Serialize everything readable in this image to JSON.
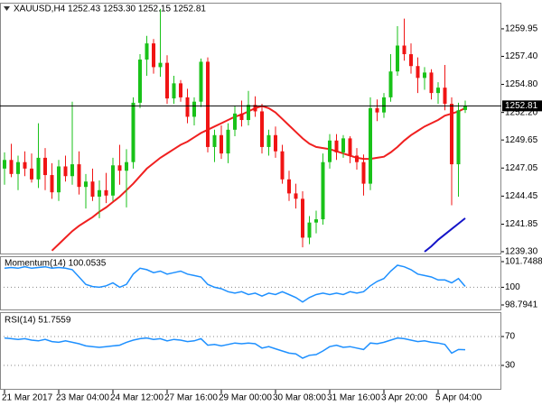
{
  "chart_data": [
    {
      "type": "candlestick",
      "title": "XAUUSD,H4  1252.43 1253.30 1252.15 1252.81",
      "categories": [
        "21 Mar 2017",
        null,
        null,
        null,
        null,
        null,
        null,
        null,
        "23 Mar 04:00",
        null,
        null,
        null,
        null,
        null,
        null,
        null,
        "24 Mar 12:00",
        null,
        null,
        null,
        null,
        null,
        null,
        null,
        "27 Mar 16:00",
        null,
        null,
        null,
        null,
        null,
        null,
        null,
        "29 Mar 00:00",
        null,
        null,
        null,
        null,
        null,
        null,
        null,
        "30 Mar 08:00",
        null,
        null,
        null,
        null,
        null,
        null,
        null,
        "31 Mar 16:00",
        null,
        null,
        null,
        null,
        null,
        null,
        null,
        "3 Apr 20:00",
        null,
        null,
        null,
        null,
        null,
        null,
        null,
        "5 Apr 04:00",
        null,
        null,
        null,
        null
      ],
      "open": [
        1247.0,
        1247.8,
        1246.5,
        1247.6,
        1247.0,
        1246.0,
        1248.0,
        1246.4,
        1244.8,
        1247.2,
        1246.3,
        1247.4,
        1245.3,
        1245.8,
        1244.4,
        1245.0,
        1244.5,
        1247.3,
        1246.8,
        1247.6,
        1253.1,
        1257.1,
        1258.6,
        1256.4,
        1256.8,
        1253.5,
        1254.9,
        1253.6,
        1251.8,
        1253.2,
        1256.9,
        1249.0,
        1250.1,
        1248.4,
        1250.6,
        1252.1,
        1251.5,
        1252.9,
        1252.3,
        1249.0,
        1250.1,
        1248.6,
        1246.0,
        1244.7,
        1244.2,
        1240.6,
        1242.0,
        1242.3,
        1247.6,
        1249.6,
        1248.5,
        1249.8,
        1248.2,
        1247.6,
        1245.6,
        1252.6,
        1252.2,
        1253.6,
        1256.0,
        1258.4,
        1257.6,
        1256.5,
        1255.4,
        1255.9,
        1254.0,
        1254.5,
        1253.0,
        1247.4,
        1252.43
      ],
      "high": [
        1248.5,
        1249.3,
        1248.2,
        1248.6,
        1248.4,
        1251.2,
        1248.9,
        1247.5,
        1247.8,
        1248.2,
        1253.2,
        1248.6,
        1246.5,
        1247.0,
        1245.9,
        1246.6,
        1248.0,
        1249.2,
        1248.8,
        1253.6,
        1257.6,
        1259.3,
        1259.0,
        1261.8,
        1257.5,
        1255.6,
        1255.2,
        1254.4,
        1253.6,
        1257.2,
        1257.3,
        1250.6,
        1251.0,
        1251.2,
        1252.8,
        1253.3,
        1254.2,
        1253.7,
        1253.0,
        1250.6,
        1250.9,
        1249.2,
        1246.8,
        1245.6,
        1244.9,
        1242.6,
        1243.1,
        1248.4,
        1250.2,
        1250.2,
        1250.1,
        1250.0,
        1248.9,
        1248.3,
        1253.6,
        1253.4,
        1254.0,
        1257.6,
        1260.2,
        1260.9,
        1258.6,
        1257.3,
        1256.4,
        1256.2,
        1255.0,
        1256.6,
        1253.6,
        1253.1,
        1253.3
      ],
      "low": [
        1245.5,
        1246.2,
        1245.0,
        1246.3,
        1245.7,
        1245.2,
        1245.0,
        1244.2,
        1244.0,
        1245.8,
        1245.5,
        1244.6,
        1243.3,
        1244.0,
        1242.4,
        1243.8,
        1244.0,
        1245.5,
        1243.4,
        1247.0,
        1252.6,
        1255.6,
        1255.8,
        1255.5,
        1253.0,
        1253.0,
        1253.2,
        1251.2,
        1251.0,
        1252.7,
        1248.5,
        1247.6,
        1247.9,
        1247.5,
        1250.0,
        1250.9,
        1251.0,
        1251.8,
        1248.4,
        1248.2,
        1248.0,
        1245.6,
        1244.0,
        1243.3,
        1239.7,
        1240.0,
        1241.0,
        1241.8,
        1247.0,
        1247.8,
        1248.0,
        1247.5,
        1246.9,
        1244.5,
        1245.0,
        1251.4,
        1251.7,
        1253.2,
        1255.6,
        1257.0,
        1255.8,
        1254.0,
        1254.3,
        1253.4,
        1253.0,
        1252.4,
        1243.6,
        1244.4,
        1252.15
      ],
      "close": [
        1247.8,
        1246.5,
        1247.6,
        1247.0,
        1246.0,
        1248.0,
        1246.4,
        1244.8,
        1247.2,
        1246.3,
        1247.4,
        1245.3,
        1245.8,
        1244.4,
        1245.0,
        1244.5,
        1247.3,
        1246.8,
        1247.6,
        1253.1,
        1257.1,
        1258.6,
        1256.4,
        1256.8,
        1253.5,
        1254.9,
        1253.6,
        1251.8,
        1253.2,
        1256.9,
        1249.0,
        1250.1,
        1248.4,
        1250.6,
        1252.1,
        1251.5,
        1252.9,
        1252.3,
        1249.0,
        1250.1,
        1248.6,
        1246.0,
        1244.7,
        1244.2,
        1240.6,
        1242.0,
        1242.3,
        1247.6,
        1249.6,
        1248.5,
        1249.8,
        1248.2,
        1247.6,
        1245.6,
        1252.6,
        1252.2,
        1253.6,
        1256.0,
        1258.4,
        1257.6,
        1256.5,
        1255.4,
        1255.9,
        1254.0,
        1254.5,
        1253.0,
        1247.4,
        1252.4,
        1252.81
      ],
      "up_color": "#19c219",
      "down_color": "#f01414",
      "overlays": [
        {
          "color": "#f02020",
          "values": [
            null,
            null,
            null,
            null,
            null,
            null,
            null,
            1239.4,
            1240.0,
            1240.6,
            1241.2,
            1241.7,
            1242.1,
            1242.5,
            1243.0,
            1243.4,
            1243.9,
            1244.4,
            1245.0,
            1245.6,
            1246.3,
            1247.0,
            1247.5,
            1248.0,
            1248.4,
            1248.8,
            1249.2,
            1249.5,
            1249.9,
            1250.3,
            1250.6,
            1250.9,
            1251.2,
            1251.5,
            1251.8,
            1252.0,
            1252.3,
            1252.6,
            1252.8,
            1252.6,
            1252.2,
            1251.6,
            1251.0,
            1250.4,
            1249.8,
            1249.3,
            1249.0,
            1248.9,
            1248.8,
            1248.6,
            1248.4,
            1248.2,
            1248.0,
            1247.9,
            1247.9,
            1248.0,
            1248.1,
            1248.5,
            1249.0,
            1249.6,
            1250.1,
            1250.5,
            1250.9,
            1251.2,
            1251.5,
            1251.9,
            1252.1,
            1252.3,
            1252.6
          ]
        },
        {
          "color": "#1414c8",
          "values": [
            null,
            null,
            null,
            null,
            null,
            null,
            null,
            null,
            null,
            null,
            null,
            null,
            null,
            null,
            null,
            null,
            null,
            null,
            null,
            null,
            null,
            null,
            null,
            null,
            null,
            null,
            null,
            null,
            null,
            null,
            null,
            null,
            null,
            null,
            null,
            null,
            null,
            null,
            null,
            null,
            null,
            null,
            null,
            null,
            null,
            null,
            null,
            null,
            null,
            null,
            null,
            null,
            null,
            null,
            null,
            null,
            null,
            null,
            null,
            null,
            null,
            null,
            1239.3,
            1239.8,
            1240.4,
            1240.9,
            1241.4,
            1241.9,
            1242.4
          ]
        }
      ],
      "current_price": 1252.81,
      "ylim": [
        1239.13,
        1262.37
      ],
      "yticks": [
        {
          "value": 1239.3,
          "label": "1239.30"
        },
        1241.85,
        1244.45,
        1247.05,
        1249.65,
        {
          "value": 1252.2,
          "label": "1252.20"
        },
        {
          "value": 1254.8,
          "label": "1254.80"
        },
        {
          "value": 1257.4,
          "label": "1257.40"
        },
        1259.95
      ]
    },
    {
      "type": "line",
      "title": "Momentum(14) 100.0535",
      "color": "#1e90ff",
      "values": [
        101.3,
        101.35,
        101.3,
        101.4,
        101.3,
        101.35,
        101.4,
        101.3,
        101.35,
        101.3,
        101.2,
        100.7,
        100.2,
        100.05,
        100.0,
        100.1,
        100.3,
        100.0,
        100.2,
        100.9,
        101.3,
        101.2,
        101.0,
        101.1,
        100.9,
        101.0,
        101.1,
        100.9,
        100.8,
        100.7,
        100.2,
        100.0,
        99.9,
        99.7,
        99.6,
        99.7,
        99.5,
        99.6,
        99.4,
        99.6,
        99.5,
        99.7,
        99.5,
        99.3,
        99.0,
        99.3,
        99.5,
        99.6,
        99.5,
        99.6,
        99.5,
        99.7,
        99.6,
        99.7,
        100.1,
        100.4,
        100.6,
        101.1,
        101.5,
        101.4,
        101.2,
        100.9,
        100.8,
        100.7,
        100.5,
        100.5,
        100.3,
        100.6,
        100.0535
      ],
      "ylim": [
        98.7941,
        101.7488
      ],
      "yticks": [
        101.7488,
        100,
        98.7941
      ],
      "levels": [
        100
      ]
    },
    {
      "type": "line",
      "title": "RSI(14) 51.7559",
      "color": "#1e90ff",
      "values": [
        68,
        67,
        66,
        67,
        65,
        64,
        66,
        63,
        62,
        64,
        62,
        60,
        57,
        56,
        55,
        56,
        57,
        58,
        62,
        65,
        67,
        68,
        66,
        67,
        64,
        66,
        65,
        63,
        64,
        67,
        58,
        59,
        57,
        59,
        61,
        60,
        61,
        60,
        54,
        56,
        53,
        50,
        47,
        46,
        40,
        44,
        45,
        50,
        56,
        58,
        55,
        56,
        54,
        52,
        61,
        60,
        62,
        65,
        68,
        67,
        65,
        63,
        64,
        62,
        61,
        59,
        47,
        52,
        51.7559
      ],
      "ylim": [
        0,
        100
      ],
      "yticks": [
        70,
        30
      ],
      "levels": [
        70,
        30
      ]
    }
  ]
}
